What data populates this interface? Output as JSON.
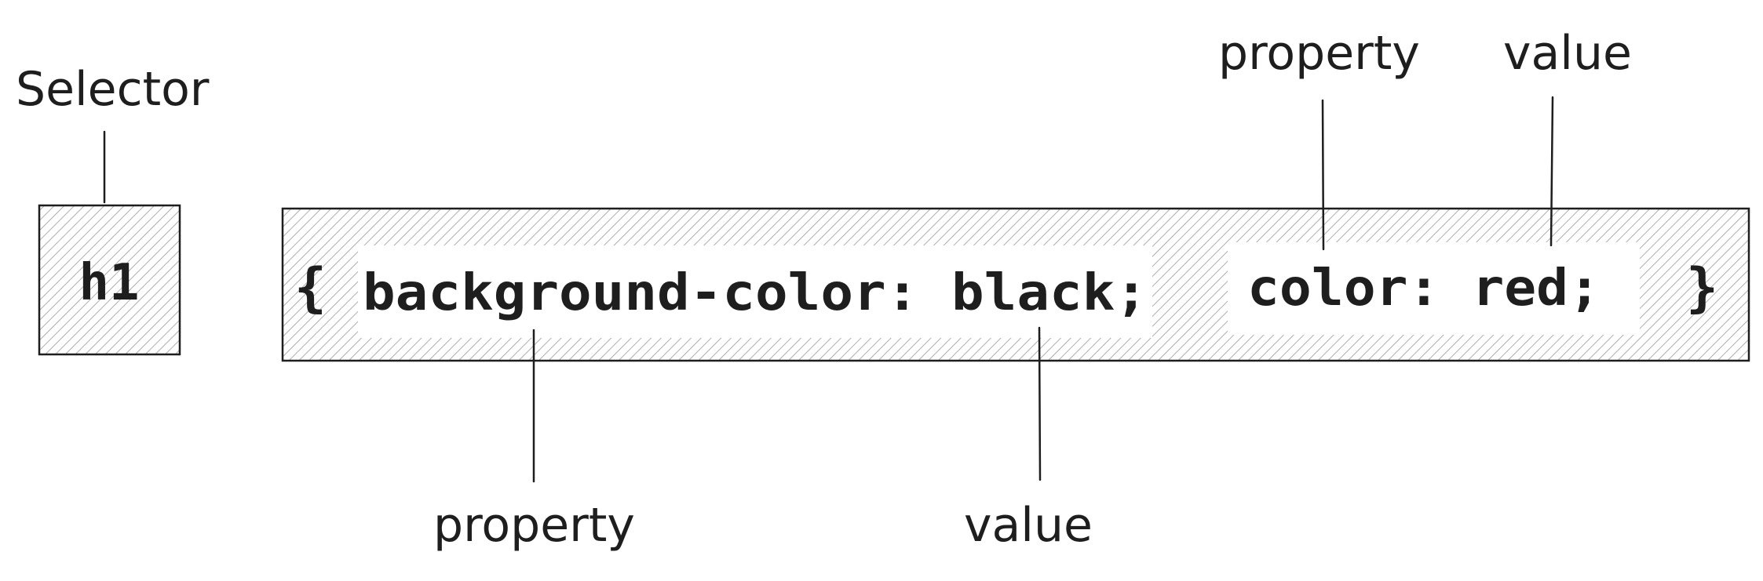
{
  "labels": {
    "selector": "Selector",
    "property_top": "property",
    "value_top": "value",
    "property_bottom": "property",
    "value_bottom": "value"
  },
  "code": {
    "selector": "h1",
    "open_brace": "{",
    "decl1": "background-color: black;",
    "decl2": "color: red;",
    "close_brace": "}"
  },
  "colors": {
    "ink": "#1e1e1e",
    "hatch": "#9a9a9a",
    "background": "#ffffff"
  }
}
